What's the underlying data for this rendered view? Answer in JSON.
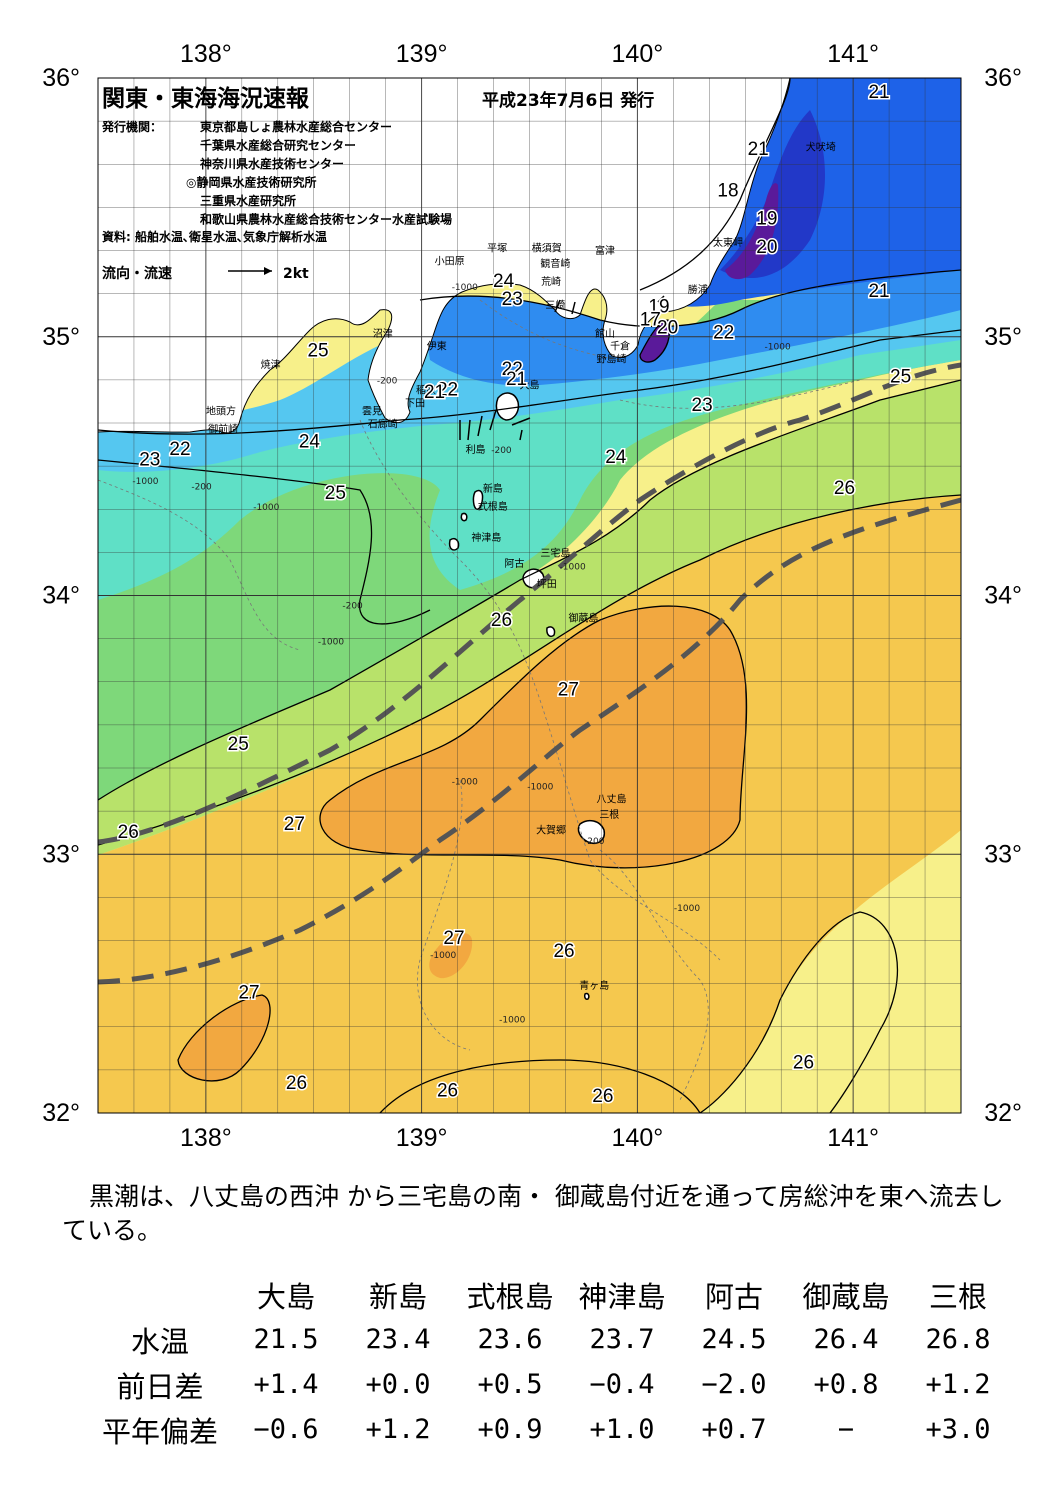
{
  "header": {
    "title": "関東・東海海況速報",
    "issued": "平成23年7月6日 発行",
    "issuer_label": "発行機関：",
    "issuers": [
      "東京都島しょ農林水産総合センター",
      "千葉県水産総合研究センター",
      "神奈川県水産技術センター",
      "◎静岡県水産技術研究所",
      "三重県水産研究所",
      "和歌山県農林水産総合技術センター水産試験場"
    ],
    "sources": "資料: 船舶水温､衛星水温､気象庁解析水温",
    "current_legend": "流向・流速",
    "current_legend_unit": "2kt"
  },
  "axes": {
    "lon_ticks": [
      "138°",
      "139°",
      "140°",
      "141°"
    ],
    "lat_ticks": [
      "36°",
      "35°",
      "34°",
      "33°",
      "32°"
    ],
    "lon_values": [
      138,
      139,
      140,
      141
    ],
    "lat_values": [
      36,
      35,
      34,
      33,
      32
    ],
    "lon_range": [
      137.5,
      141.5
    ],
    "lat_range": [
      32,
      36
    ]
  },
  "places": [
    {
      "name": "犬吠埼",
      "lon": 140.85,
      "lat": 35.72
    },
    {
      "name": "太東岬",
      "lon": 140.42,
      "lat": 35.35
    },
    {
      "name": "勝浦",
      "lon": 140.28,
      "lat": 35.17
    },
    {
      "name": "富津",
      "lon": 139.85,
      "lat": 35.32
    },
    {
      "name": "館山",
      "lon": 139.85,
      "lat": 35.0
    },
    {
      "name": "千倉",
      "lon": 139.92,
      "lat": 34.95
    },
    {
      "name": "野島崎",
      "lon": 139.88,
      "lat": 34.9
    },
    {
      "name": "横須賀",
      "lon": 139.58,
      "lat": 35.33
    },
    {
      "name": "観音崎",
      "lon": 139.62,
      "lat": 35.27
    },
    {
      "name": "荒崎",
      "lon": 139.6,
      "lat": 35.2
    },
    {
      "name": "三崎",
      "lon": 139.62,
      "lat": 35.11
    },
    {
      "name": "平塚",
      "lon": 139.35,
      "lat": 35.33
    },
    {
      "name": "小田原",
      "lon": 139.13,
      "lat": 35.28
    },
    {
      "name": "沼津",
      "lon": 138.82,
      "lat": 35.0
    },
    {
      "name": "伊東",
      "lon": 139.07,
      "lat": 34.95
    },
    {
      "name": "焼津",
      "lon": 138.3,
      "lat": 34.88
    },
    {
      "name": "稲取",
      "lon": 139.02,
      "lat": 34.78
    },
    {
      "name": "下田",
      "lon": 138.97,
      "lat": 34.73
    },
    {
      "name": "雲見",
      "lon": 138.77,
      "lat": 34.7
    },
    {
      "name": "石廊崎",
      "lon": 138.82,
      "lat": 34.65
    },
    {
      "name": "地頭方",
      "lon": 138.07,
      "lat": 34.7
    },
    {
      "name": "御前崎",
      "lon": 138.08,
      "lat": 34.63
    },
    {
      "name": "大島",
      "lon": 139.5,
      "lat": 34.8
    },
    {
      "name": "利島",
      "lon": 139.25,
      "lat": 34.55
    },
    {
      "name": "新島",
      "lon": 139.33,
      "lat": 34.4
    },
    {
      "name": "式根島",
      "lon": 139.33,
      "lat": 34.33
    },
    {
      "name": "神津島",
      "lon": 139.3,
      "lat": 34.21
    },
    {
      "name": "三宅島",
      "lon": 139.62,
      "lat": 34.15
    },
    {
      "name": "阿古",
      "lon": 139.43,
      "lat": 34.11
    },
    {
      "name": "坪田",
      "lon": 139.58,
      "lat": 34.03
    },
    {
      "name": "御蔵島",
      "lon": 139.75,
      "lat": 33.9
    },
    {
      "name": "八丈島",
      "lon": 139.88,
      "lat": 33.2
    },
    {
      "name": "三根",
      "lon": 139.87,
      "lat": 33.14
    },
    {
      "name": "大賀郷",
      "lon": 139.6,
      "lat": 33.08
    },
    {
      "name": "青ヶ島",
      "lon": 139.8,
      "lat": 32.48
    }
  ],
  "isotherm_labels": [
    {
      "text": "21",
      "lon": 141.12,
      "lat": 35.95
    },
    {
      "text": "21",
      "lon": 140.56,
      "lat": 35.73
    },
    {
      "text": "18",
      "lon": 140.42,
      "lat": 35.57
    },
    {
      "text": "19",
      "lon": 140.6,
      "lat": 35.46
    },
    {
      "text": "20",
      "lon": 140.6,
      "lat": 35.35
    },
    {
      "text": "21",
      "lon": 141.12,
      "lat": 35.18
    },
    {
      "text": "24",
      "lon": 139.38,
      "lat": 35.22
    },
    {
      "text": "23",
      "lon": 139.42,
      "lat": 35.15
    },
    {
      "text": "19",
      "lon": 140.1,
      "lat": 35.12
    },
    {
      "text": "17",
      "lon": 140.06,
      "lat": 35.07
    },
    {
      "text": "20",
      "lon": 140.14,
      "lat": 35.04
    },
    {
      "text": "22",
      "lon": 140.4,
      "lat": 35.02
    },
    {
      "text": "25",
      "lon": 138.52,
      "lat": 34.95
    },
    {
      "text": "22",
      "lon": 139.42,
      "lat": 34.88
    },
    {
      "text": "21",
      "lon": 139.44,
      "lat": 34.84
    },
    {
      "text": "22",
      "lon": 139.12,
      "lat": 34.8
    },
    {
      "text": "21",
      "lon": 139.06,
      "lat": 34.79
    },
    {
      "text": "23",
      "lon": 140.3,
      "lat": 34.74
    },
    {
      "text": "25",
      "lon": 141.22,
      "lat": 34.85
    },
    {
      "text": "24",
      "lon": 138.48,
      "lat": 34.6
    },
    {
      "text": "22",
      "lon": 137.88,
      "lat": 34.57
    },
    {
      "text": "23",
      "lon": 137.74,
      "lat": 34.53
    },
    {
      "text": "24",
      "lon": 139.9,
      "lat": 34.54
    },
    {
      "text": "26",
      "lon": 140.96,
      "lat": 34.42
    },
    {
      "text": "25",
      "lon": 138.6,
      "lat": 34.4
    },
    {
      "text": "26",
      "lon": 139.37,
      "lat": 33.91
    },
    {
      "text": "27",
      "lon": 139.68,
      "lat": 33.64
    },
    {
      "text": "25",
      "lon": 138.15,
      "lat": 33.43
    },
    {
      "text": "27",
      "lon": 138.41,
      "lat": 33.12
    },
    {
      "text": "26",
      "lon": 137.64,
      "lat": 33.09
    },
    {
      "text": "27",
      "lon": 39.15,
      "lat": 0
    },
    {
      "text": "26",
      "lon": 139.66,
      "lat": 32.63
    },
    {
      "text": "27",
      "lon": 138.2,
      "lat": 32.47
    },
    {
      "text": "26",
      "lon": 140.77,
      "lat": 32.2
    },
    {
      "text": "26",
      "lon": 138.42,
      "lat": 32.12
    },
    {
      "text": "26",
      "lon": 139.12,
      "lat": 32.09
    },
    {
      "text": "26",
      "lon": 139.84,
      "lat": 32.07
    }
  ],
  "depth_labels": [
    {
      "text": "-1000",
      "lon": 139.2,
      "lat": 35.18
    },
    {
      "text": "-200",
      "lon": 138.84,
      "lat": 34.82
    },
    {
      "text": "-1000",
      "lon": 140.65,
      "lat": 34.95
    },
    {
      "text": "-1000",
      "lon": 137.72,
      "lat": 34.43
    },
    {
      "text": "-200",
      "lon": 137.98,
      "lat": 34.41
    },
    {
      "text": "-1000",
      "lon": 138.28,
      "lat": 34.33
    },
    {
      "text": "-200",
      "lon": 139.37,
      "lat": 34.55
    },
    {
      "text": "-1000",
      "lon": 139.7,
      "lat": 34.1
    },
    {
      "text": "-200",
      "lon": 138.68,
      "lat": 33.95
    },
    {
      "text": "-1000",
      "lon": 138.58,
      "lat": 33.81
    },
    {
      "text": "-1000",
      "lon": 139.2,
      "lat": 33.27
    },
    {
      "text": "-1000",
      "lon": 139.55,
      "lat": 33.25
    },
    {
      "text": "-200",
      "lon": 139.8,
      "lat": 33.04
    },
    {
      "text": "-1000",
      "lon": 140.23,
      "lat": 32.78
    },
    {
      "text": "-1000",
      "lon": 139.1,
      "lat": 32.6
    },
    {
      "text": "-1000",
      "lon": 139.42,
      "lat": 32.35
    }
  ],
  "summary": "黒潮は、八丈島の西沖 から三宅島の南・ 御蔵島付近を通って房総沖を東へ流去している。",
  "stats": {
    "stations": [
      "大島",
      "新島",
      "式根島",
      "神津島",
      "阿古",
      "御蔵島",
      "三根"
    ],
    "rows": [
      {
        "label": "水温",
        "values": [
          "21.5",
          "23.4",
          "23.6",
          "23.7",
          "24.5",
          "26.4",
          "26.8"
        ]
      },
      {
        "label": "前日差",
        "values": [
          "+1.4",
          "+0.0",
          "+0.5",
          "−0.4",
          "−2.0",
          "+0.8",
          "+1.2"
        ]
      },
      {
        "label": "平年偏差",
        "values": [
          "−0.6",
          "+1.2",
          "+0.9",
          "+1.0",
          "+0.7",
          "−",
          "+3.0"
        ]
      }
    ]
  },
  "colors": {
    "t17": "#5a1a9a",
    "t19": "#2238c8",
    "t21": "#1e62e8",
    "t22": "#2f8cf0",
    "t23": "#55c7f0",
    "t24": "#5fe0c6",
    "t25": "#7ed87a",
    "t25b": "#b8e26a",
    "t26": "#f7f08a",
    "t26b": "#f5c84e",
    "t27": "#f2a840",
    "land": "#ffffff",
    "kuroshio": "#555555"
  }
}
